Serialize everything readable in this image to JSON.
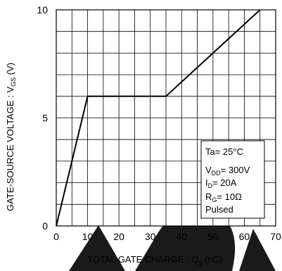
{
  "chart_data": {
    "type": "line",
    "x_ticks": [
      "0",
      "10",
      "20",
      "30",
      "40",
      "50",
      "60",
      "70"
    ],
    "y_ticks": [
      "0",
      "5",
      "10"
    ],
    "xlim": [
      0,
      70
    ],
    "ylim": [
      0,
      10
    ],
    "grid": true,
    "x_grid_step": 5,
    "y_grid_step": 1,
    "xlabel": {
      "main": "TOTAL GATE CHARGE : Q",
      "sub": "g",
      "tail": "  (nC)"
    },
    "ylabel": {
      "main": "GATE-SOURCE VOLTAGE : V",
      "sub": "GS",
      "tail": " (V)"
    },
    "series": [
      {
        "x": [
          0,
          10,
          35,
          65
        ],
        "y": [
          0,
          6,
          6,
          10
        ]
      }
    ],
    "conditions": {
      "ta": "Ta= 25°C",
      "vdd_main": "V",
      "vdd_sub": "DD",
      "vdd_tail": "= 300V",
      "id_main": "I",
      "id_sub": "D",
      "id_tail": "= 20A",
      "rg_main": "R",
      "rg_sub": "G",
      "rg_tail": "= 10Ω",
      "pulsed": "Pulsed"
    },
    "watermark_color": "#1a1a1a"
  }
}
